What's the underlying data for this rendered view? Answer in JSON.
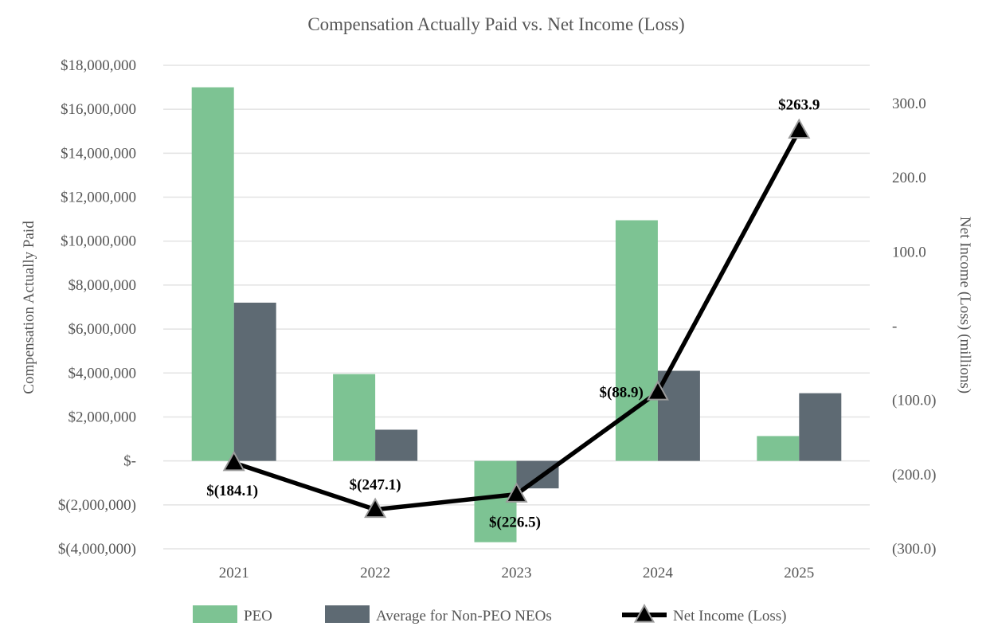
{
  "chart_data": {
    "type": "bar",
    "title": "Compensation Actually Paid vs. Net Income (Loss)",
    "categories": [
      "2021",
      "2022",
      "2023",
      "2024",
      "2025"
    ],
    "series": [
      {
        "name": "PEO",
        "type": "bar",
        "axis": "left",
        "color": "#7dc393",
        "values": [
          17000000,
          3950000,
          -3700000,
          10950000,
          1130000
        ]
      },
      {
        "name": "Average for Non-PEO NEOs",
        "type": "bar",
        "axis": "left",
        "color": "#5e6a73",
        "values": [
          7200000,
          1420000,
          -1250000,
          4100000,
          3080000
        ]
      },
      {
        "name": "Net Income (Loss)",
        "type": "line",
        "axis": "right",
        "color": "#000000",
        "marker": "triangle",
        "values": [
          -184.1,
          -247.1,
          -226.5,
          -88.9,
          263.9
        ],
        "labels": [
          "$(184.1)",
          "$(247.1)",
          "$(226.5)",
          "$(88.9)",
          "$263.9"
        ]
      }
    ],
    "ylabel": "Compensation Actually Paid",
    "ylabel_right": "Net Income (Loss) (millions)",
    "ylim": [
      -4000000,
      18000000
    ],
    "ylim_right": [
      -300,
      300
    ],
    "yticks": [
      {
        "value": 18000000,
        "label": "$18,000,000"
      },
      {
        "value": 16000000,
        "label": "$16,000,000"
      },
      {
        "value": 14000000,
        "label": "$14,000,000"
      },
      {
        "value": 12000000,
        "label": "$12,000,000"
      },
      {
        "value": 10000000,
        "label": "$10,000,000"
      },
      {
        "value": 8000000,
        "label": "$8,000,000"
      },
      {
        "value": 6000000,
        "label": "$6,000,000"
      },
      {
        "value": 4000000,
        "label": "$4,000,000"
      },
      {
        "value": 2000000,
        "label": "$2,000,000"
      },
      {
        "value": 0,
        "label": "$-"
      },
      {
        "value": -2000000,
        "label": "$(2,000,000)"
      },
      {
        "value": -4000000,
        "label": "$(4,000,000)"
      }
    ],
    "yticks_right": [
      {
        "value": 300,
        "label": "300.0"
      },
      {
        "value": 200,
        "label": "200.0"
      },
      {
        "value": 100,
        "label": "100.0"
      },
      {
        "value": 0,
        "label": "-"
      },
      {
        "value": -100,
        "label": "(100.0)"
      },
      {
        "value": -200,
        "label": "(200.0)"
      },
      {
        "value": -300,
        "label": "(300.0)"
      }
    ],
    "grid": true,
    "legend": "bottom"
  }
}
